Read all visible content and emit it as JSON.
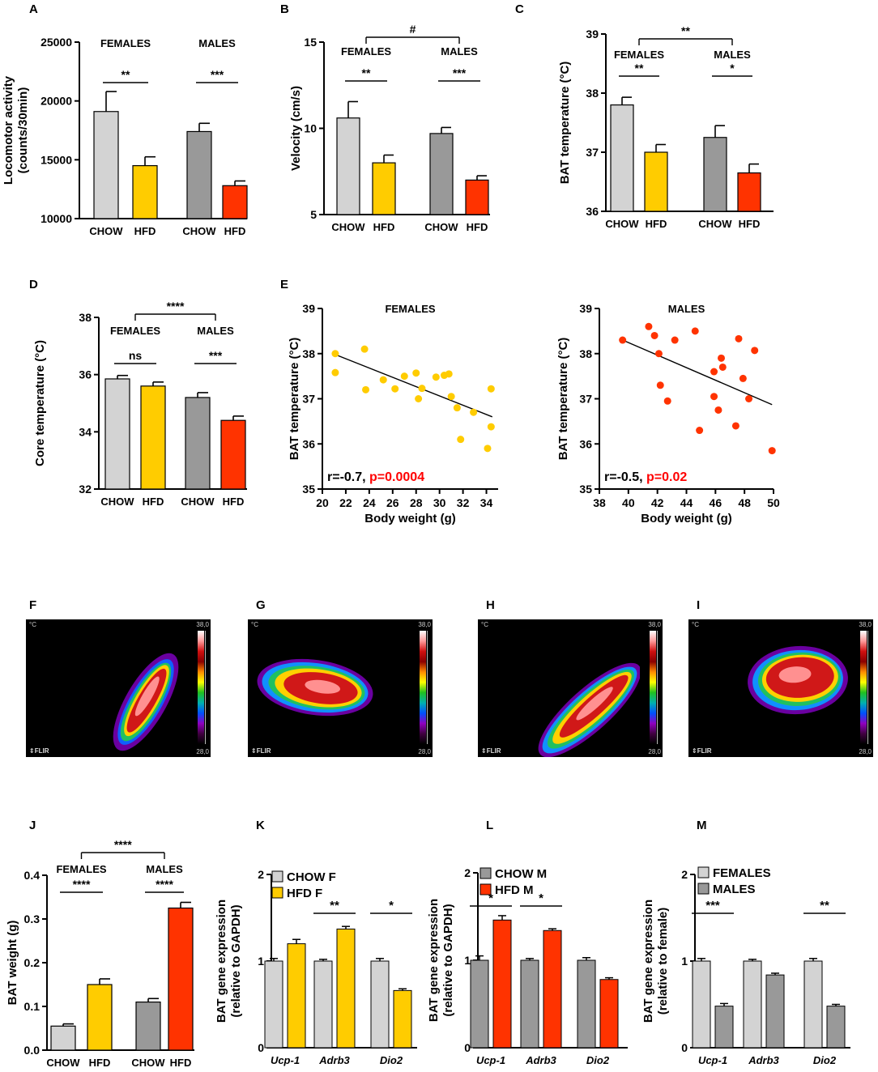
{
  "colors": {
    "chow_f": "#d3d3d3",
    "hfd_f": "#ffcc00",
    "chow_m": "#999999",
    "hfd_m": "#ff3300",
    "text": "#000000",
    "pvalue": "#ff0000"
  },
  "panel_letters": [
    "A",
    "B",
    "C",
    "D",
    "E",
    "F",
    "G",
    "H",
    "I",
    "J",
    "K",
    "L",
    "M"
  ],
  "chart_data": [
    {
      "id": "A",
      "type": "bar",
      "ylabel": "Locomotor activity (counts/30min)",
      "ylabel_lines": [
        "Locomotor activity",
        "(counts/30min)"
      ],
      "ylim": [
        10000,
        25000
      ],
      "yticks": [
        "10000",
        "15000",
        "20000",
        "25000"
      ],
      "categories": [
        "CHOW",
        "HFD",
        "CHOW",
        "HFD"
      ],
      "values": [
        19100,
        14500,
        17400,
        12800
      ],
      "errors": [
        1700,
        750,
        700,
        400
      ],
      "group_labels": [
        "FEMALES",
        "MALES"
      ],
      "annotations": [
        {
          "text": "**",
          "pair": [
            0,
            1
          ]
        },
        {
          "text": "***",
          "pair": [
            2,
            3
          ]
        }
      ]
    },
    {
      "id": "B",
      "type": "bar",
      "ylabel": "Velocity (cm/s)",
      "ylabel_lines": [
        "Velocity (cm/s)"
      ],
      "ylim": [
        5,
        15
      ],
      "yticks": [
        "5",
        "10",
        "15"
      ],
      "categories": [
        "CHOW",
        "HFD",
        "CHOW",
        "HFD"
      ],
      "values": [
        10.6,
        8.0,
        9.7,
        7.0
      ],
      "errors": [
        0.95,
        0.45,
        0.35,
        0.25
      ],
      "group_labels": [
        "FEMALES",
        "MALES"
      ],
      "group_annotation": "#",
      "annotations": [
        {
          "text": "**",
          "pair": [
            0,
            1
          ]
        },
        {
          "text": "***",
          "pair": [
            2,
            3
          ]
        }
      ]
    },
    {
      "id": "C",
      "type": "bar",
      "ylabel": "BAT temperature (°C)",
      "ylabel_lines": [
        "BAT temperature (°C)"
      ],
      "ylim": [
        36,
        39
      ],
      "yticks": [
        "36",
        "37",
        "38",
        "39"
      ],
      "categories": [
        "CHOW",
        "HFD",
        "CHOW",
        "HFD"
      ],
      "values": [
        37.8,
        37.0,
        37.25,
        36.65
      ],
      "errors": [
        0.13,
        0.13,
        0.2,
        0.15
      ],
      "group_labels": [
        "FEMALES",
        "MALES"
      ],
      "group_annotation": "**",
      "annotations": [
        {
          "text": "**",
          "pair": [
            0,
            1
          ]
        },
        {
          "text": "*",
          "pair": [
            2,
            3
          ]
        }
      ]
    },
    {
      "id": "D",
      "type": "bar",
      "ylabel": "Core temperature (°C)",
      "ylabel_lines": [
        "Core temperature (°C)"
      ],
      "ylim": [
        32,
        38
      ],
      "yticks": [
        "32",
        "34",
        "36",
        "38"
      ],
      "categories": [
        "CHOW",
        "HFD",
        "CHOW",
        "HFD"
      ],
      "values": [
        35.85,
        35.6,
        35.2,
        34.4
      ],
      "errors": [
        0.12,
        0.14,
        0.17,
        0.15
      ],
      "group_labels": [
        "FEMALES",
        "MALES"
      ],
      "group_annotation": "****",
      "annotations": [
        {
          "text": "ns",
          "pair": [
            0,
            1
          ]
        },
        {
          "text": "***",
          "pair": [
            2,
            3
          ]
        }
      ]
    },
    {
      "id": "E-females",
      "type": "scatter",
      "title": "FEMALES",
      "xlabel": "Body weight (g)",
      "ylabel": "BAT temperature (°C)",
      "xlim": [
        20,
        35
      ],
      "ylim": [
        35,
        39
      ],
      "xticks": [
        "20",
        "22",
        "24",
        "26",
        "28",
        "30",
        "32",
        "34"
      ],
      "yticks": [
        "35",
        "36",
        "37",
        "38",
        "39"
      ],
      "points": [
        [
          21.1,
          38.0
        ],
        [
          21.1,
          37.58
        ],
        [
          23.6,
          38.1
        ],
        [
          23.7,
          37.2
        ],
        [
          25.2,
          37.42
        ],
        [
          26.2,
          37.22
        ],
        [
          27.0,
          37.5
        ],
        [
          28.0,
          37.57
        ],
        [
          28.2,
          37.0
        ],
        [
          28.5,
          37.23
        ],
        [
          29.7,
          37.48
        ],
        [
          30.4,
          37.52
        ],
        [
          30.8,
          37.55
        ],
        [
          31.0,
          37.05
        ],
        [
          31.5,
          36.8
        ],
        [
          31.8,
          36.1
        ],
        [
          32.9,
          36.7
        ],
        [
          34.1,
          35.9
        ],
        [
          34.4,
          37.22
        ],
        [
          34.4,
          36.38
        ]
      ],
      "fit": [
        [
          21.1,
          37.98
        ],
        [
          34.5,
          36.6
        ]
      ],
      "stats_r": "r=-0.7, ",
      "stats_p": "p=0.0004",
      "color": "#ffcc00"
    },
    {
      "id": "E-males",
      "type": "scatter",
      "title": "MALES",
      "xlabel": "Body weight (g)",
      "ylabel": "BAT temperature (°C)",
      "xlim": [
        38,
        50
      ],
      "ylim": [
        35,
        39
      ],
      "xticks": [
        "38",
        "40",
        "42",
        "44",
        "46",
        "48",
        "50"
      ],
      "yticks": [
        "35",
        "36",
        "37",
        "38",
        "39"
      ],
      "points": [
        [
          39.6,
          38.3
        ],
        [
          41.4,
          38.6
        ],
        [
          41.8,
          38.4
        ],
        [
          42.1,
          38.0
        ],
        [
          42.2,
          37.3
        ],
        [
          42.7,
          36.95
        ],
        [
          43.2,
          38.3
        ],
        [
          44.6,
          38.5
        ],
        [
          44.9,
          36.3
        ],
        [
          45.9,
          37.6
        ],
        [
          45.9,
          37.05
        ],
        [
          46.2,
          36.75
        ],
        [
          46.4,
          37.9
        ],
        [
          46.5,
          37.7
        ],
        [
          47.4,
          36.4
        ],
        [
          47.6,
          38.33
        ],
        [
          47.9,
          37.45
        ],
        [
          48.3,
          37.0
        ],
        [
          48.7,
          38.07
        ],
        [
          49.9,
          35.85
        ]
      ],
      "fit": [
        [
          39.6,
          38.3
        ],
        [
          49.9,
          36.87
        ]
      ],
      "stats_r": "r=-0.5, ",
      "stats_p": "p=0.02",
      "color": "#ff3300"
    },
    {
      "id": "J",
      "type": "bar",
      "ylabel": "BAT weight (g)",
      "ylabel_lines": [
        "BAT weight (g)"
      ],
      "ylim": [
        0,
        0.4
      ],
      "yticks": [
        "0.0",
        "0.1",
        "0.2",
        "0.3",
        "0.4"
      ],
      "categories": [
        "CHOW",
        "HFD",
        "CHOW",
        "HFD"
      ],
      "values": [
        0.055,
        0.15,
        0.11,
        0.325
      ],
      "errors": [
        0.005,
        0.013,
        0.008,
        0.013
      ],
      "group_labels": [
        "FEMALES",
        "MALES"
      ],
      "group_annotation": "****",
      "annotations": [
        {
          "text": "****",
          "pair": [
            0,
            1
          ]
        },
        {
          "text": "****",
          "pair": [
            2,
            3
          ]
        }
      ]
    },
    {
      "id": "K",
      "type": "bar",
      "ylabel": "BAT gene expression (relative to GAPDH)",
      "ylabel_lines": [
        "BAT gene expression",
        "(relative to GAPDH)"
      ],
      "ylim": [
        0,
        2
      ],
      "yticks": [
        "0",
        "1",
        "2"
      ],
      "genes": [
        "Ucp-1",
        "Adrb3",
        "Dio2"
      ],
      "series": [
        {
          "name": "CHOW F",
          "values": [
            1.0,
            1.0,
            1.0
          ],
          "errors": [
            0.03,
            0.02,
            0.03
          ],
          "color": "#d3d3d3"
        },
        {
          "name": "HFD F",
          "values": [
            1.2,
            1.37,
            0.66
          ],
          "errors": [
            0.05,
            0.03,
            0.02
          ],
          "color": "#ffcc00"
        }
      ],
      "annotations": [
        {
          "text": "**",
          "gene": 1
        },
        {
          "text": "*",
          "gene": 2
        }
      ]
    },
    {
      "id": "L",
      "type": "bar",
      "ylabel": "BAT gene expression (relative to GAPDH)",
      "ylabel_lines": [
        "BAT gene expression",
        "(relative to GAPDH)"
      ],
      "ylim": [
        0,
        2
      ],
      "yticks": [
        "0",
        "1",
        "2"
      ],
      "genes": [
        "Ucp-1",
        "Adrb3",
        "Dio2"
      ],
      "series": [
        {
          "name": "CHOW M",
          "values": [
            1.0,
            1.0,
            1.0
          ],
          "errors": [
            0.05,
            0.02,
            0.03
          ],
          "color": "#999999"
        },
        {
          "name": "HFD M",
          "values": [
            1.46,
            1.34,
            0.78
          ],
          "errors": [
            0.05,
            0.02,
            0.02
          ],
          "color": "#ff3300"
        }
      ],
      "annotations": [
        {
          "text": "*",
          "gene": 0
        },
        {
          "text": "*",
          "gene": 1
        }
      ]
    },
    {
      "id": "M",
      "type": "bar",
      "ylabel": "BAT gene expression (relative to female)",
      "ylabel_lines": [
        "BAT gene expression",
        "(relative to female)"
      ],
      "ylim": [
        0,
        2
      ],
      "yticks": [
        "0",
        "1",
        "2"
      ],
      "genes": [
        "Ucp-1",
        "Adrb3",
        "Dio2"
      ],
      "series": [
        {
          "name": "FEMALES",
          "values": [
            1.0,
            1.0,
            1.0
          ],
          "errors": [
            0.03,
            0.02,
            0.03
          ],
          "color": "#d3d3d3"
        },
        {
          "name": "MALES",
          "values": [
            0.48,
            0.84,
            0.48
          ],
          "errors": [
            0.03,
            0.02,
            0.02
          ],
          "color": "#999999"
        }
      ],
      "annotations": [
        {
          "text": "***",
          "gene": 0
        },
        {
          "text": "**",
          "gene": 2
        }
      ]
    }
  ],
  "thermal_images": [
    {
      "unit": "°C",
      "max": "38,0",
      "min": "28,0",
      "brand": "⇕FLIR"
    },
    {
      "unit": "°C",
      "max": "38,0",
      "min": "28,0",
      "brand": "⇕FLIR"
    },
    {
      "unit": "°C",
      "max": "38,0",
      "min": "28,0",
      "brand": "⇕FLIR"
    },
    {
      "unit": "°C",
      "max": "38,0",
      "min": "28,0",
      "brand": "⇕FLIR"
    }
  ]
}
